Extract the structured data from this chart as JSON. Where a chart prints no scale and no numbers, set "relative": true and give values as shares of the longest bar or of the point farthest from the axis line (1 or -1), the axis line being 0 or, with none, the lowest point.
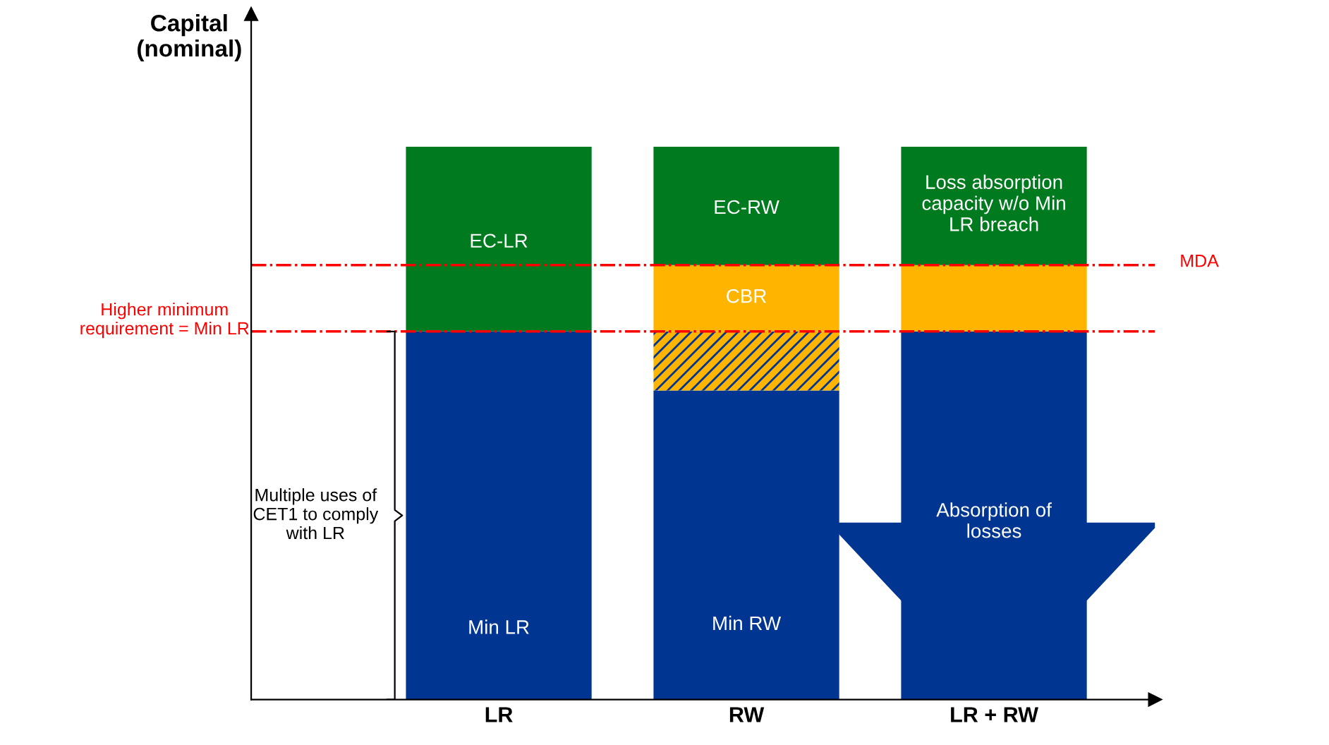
{
  "chart_data": {
    "type": "bar",
    "stacked": true,
    "relative": true,
    "ylabel": "Capital\n(nominal)",
    "categories": [
      "LR",
      "RW",
      "LR + RW"
    ],
    "series": [
      {
        "color": "#003591",
        "values": [
          0.666,
          0.559,
          0.666
        ]
      },
      {
        "color": "#ffb400",
        "values": [
          null,
          0.107,
          null
        ]
      },
      {
        "color": "#ffb400",
        "values": [
          null,
          0.12,
          0.12
        ]
      },
      {
        "color": "#007a1e",
        "values": [
          0.334,
          0.214,
          0.214
        ]
      }
    ],
    "ref_lines": [
      {
        "axis": "y",
        "value": 0.666,
        "label": "Higher minimum\nrequirement = Min LR",
        "color": "#ff0000",
        "line_style": "dashdot"
      },
      {
        "axis": "y",
        "value": 0.786,
        "label": "MDA",
        "color": "#ff0000",
        "line_style": "dashdot"
      }
    ],
    "annotations": [
      "EC-LR",
      "Min LR",
      "EC-RW",
      "CBR",
      "Min RW",
      "Loss absorption\ncapacity w/o Min\nLR breach",
      "Absorption of\nlosses",
      "Multiple uses of\nCET1 to comply\nwith LR"
    ],
    "grid": false
  }
}
